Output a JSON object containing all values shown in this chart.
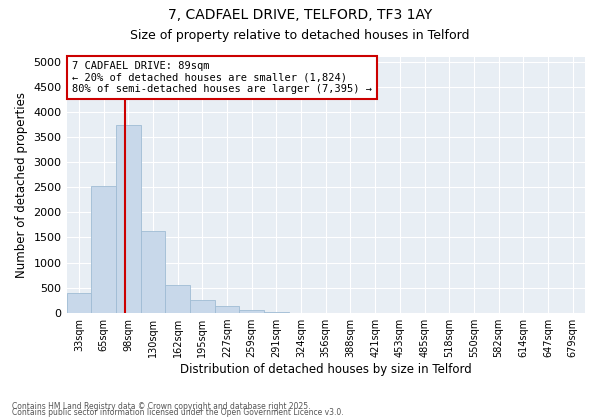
{
  "title_line1": "7, CADFAEL DRIVE, TELFORD, TF3 1AY",
  "title_line2": "Size of property relative to detached houses in Telford",
  "xlabel": "Distribution of detached houses by size in Telford",
  "ylabel": "Number of detached properties",
  "categories": [
    "33sqm",
    "65sqm",
    "98sqm",
    "130sqm",
    "162sqm",
    "195sqm",
    "227sqm",
    "259sqm",
    "291sqm",
    "324sqm",
    "356sqm",
    "388sqm",
    "421sqm",
    "453sqm",
    "485sqm",
    "518sqm",
    "550sqm",
    "582sqm",
    "614sqm",
    "647sqm",
    "679sqm"
  ],
  "values": [
    390,
    2520,
    3750,
    1620,
    560,
    250,
    125,
    55,
    20,
    0,
    0,
    0,
    0,
    0,
    0,
    0,
    0,
    0,
    0,
    0,
    0
  ],
  "bar_color": "#c8d8ea",
  "bar_edge_color": "#a0bcd4",
  "vline_x": 1.85,
  "vline_color": "#cc0000",
  "box_text_line1": "7 CADFAEL DRIVE: 89sqm",
  "box_text_line2": "← 20% of detached houses are smaller (1,824)",
  "box_text_line3": "80% of semi-detached houses are larger (7,395) →",
  "box_color": "#cc0000",
  "box_fill": "white",
  "ylim": [
    0,
    5100
  ],
  "yticks": [
    0,
    500,
    1000,
    1500,
    2000,
    2500,
    3000,
    3500,
    4000,
    4500,
    5000
  ],
  "plot_background": "#e8eef4",
  "footnote_line1": "Contains HM Land Registry data © Crown copyright and database right 2025.",
  "footnote_line2": "Contains public sector information licensed under the Open Government Licence v3.0."
}
